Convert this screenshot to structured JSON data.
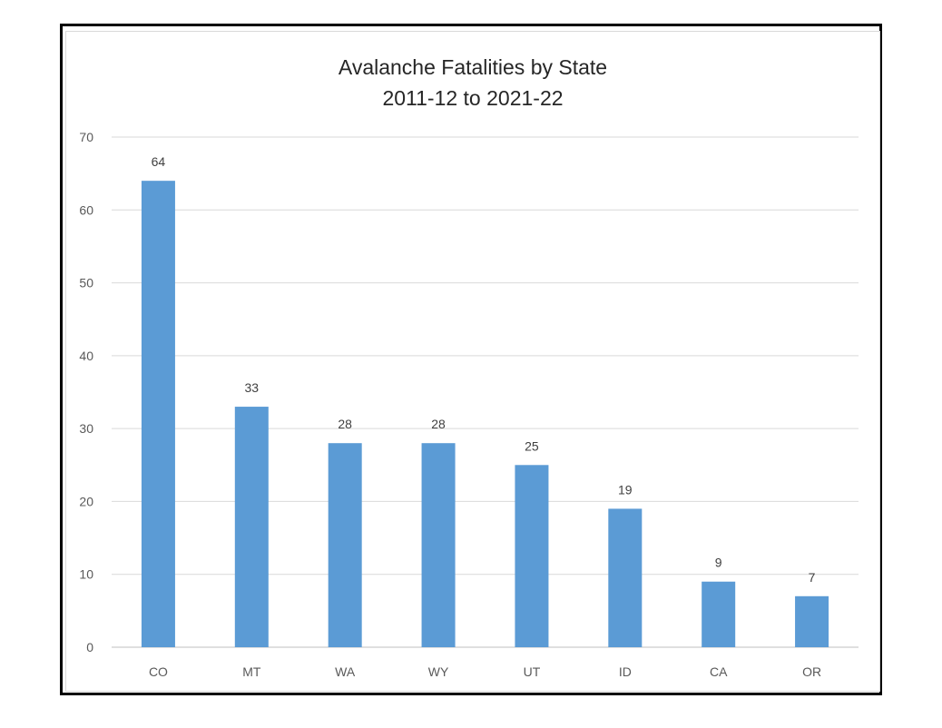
{
  "chart_data": {
    "type": "bar",
    "title_lines": [
      "Avalanche Fatalities by State",
      "2011-12 to 2021-22"
    ],
    "categories": [
      "CO",
      "MT",
      "WA",
      "WY",
      "UT",
      "ID",
      "CA",
      "OR"
    ],
    "values": [
      64,
      33,
      28,
      28,
      25,
      19,
      9,
      7
    ],
    "ylim": [
      0,
      70
    ],
    "yticks": [
      0,
      10,
      20,
      30,
      40,
      50,
      60,
      70
    ],
    "grid": true,
    "data_labels": true,
    "colors": {
      "bar": "#5b9bd5",
      "grid": "#d9d9d9",
      "axis": "#bfbfbf"
    }
  }
}
